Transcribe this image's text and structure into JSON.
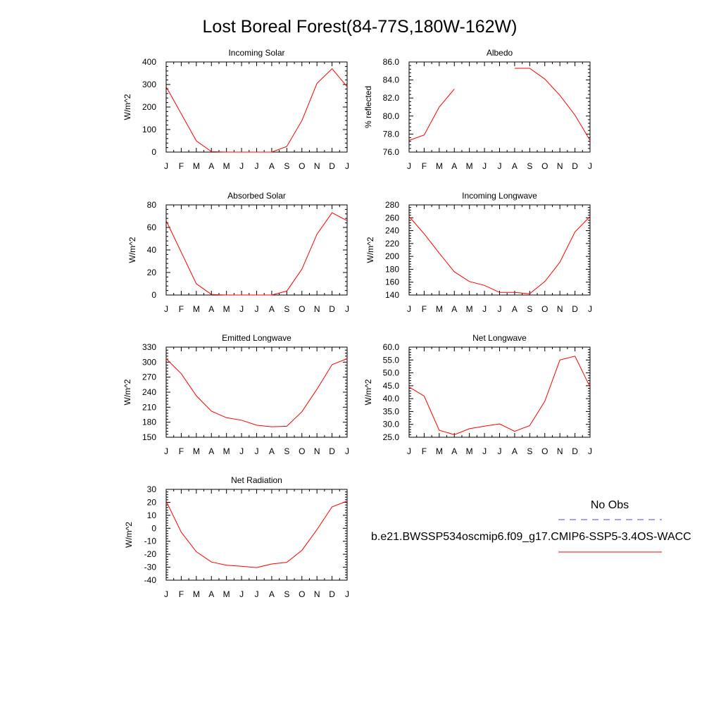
{
  "page_title": "Lost Boreal Forest(84-77S,180W-162W)",
  "month_labels": [
    "J",
    "F",
    "M",
    "A",
    "M",
    "J",
    "J",
    "A",
    "S",
    "O",
    "N",
    "D",
    "J"
  ],
  "colors": {
    "model_line": "#ff0000",
    "obs_line": "#4444ff",
    "axis": "#000000"
  },
  "legend": {
    "obs_label": "No Obs",
    "model_label": "b.e21.BWSSP534oscmip6.f09_g17.CMIP6-SSP5-3.4OS-WACC"
  },
  "chart_data": [
    {
      "type": "line",
      "title": "Incoming Solar",
      "ylabel": "W/m^2",
      "ylim": [
        0,
        400
      ],
      "yticks": [
        "0",
        "100",
        "200",
        "300",
        "400"
      ],
      "values": [
        290,
        170,
        50,
        2,
        0,
        0,
        0,
        0,
        25,
        140,
        305,
        370,
        290
      ]
    },
    {
      "type": "line",
      "title": "Albedo",
      "ylabel": "% reflected",
      "ylim": [
        76,
        86
      ],
      "yticks": [
        "76.0",
        "78.0",
        "80.0",
        "82.0",
        "84.0",
        "86.0"
      ],
      "values": [
        77.3,
        77.9,
        81.0,
        83.0,
        null,
        null,
        null,
        85.3,
        85.3,
        84.1,
        82.3,
        80.1,
        77.3
      ]
    },
    {
      "type": "line",
      "title": "Absorbed Solar",
      "ylabel": "W/m^2",
      "ylim": [
        0,
        80
      ],
      "yticks": [
        "0",
        "20",
        "40",
        "60",
        "80"
      ],
      "values": [
        66,
        38,
        10,
        0.5,
        0,
        0,
        0,
        0,
        3.5,
        23,
        54,
        73,
        66
      ]
    },
    {
      "type": "line",
      "title": "Incoming Longwave",
      "ylabel": "W/m^2",
      "ylim": [
        140,
        280
      ],
      "yticks": [
        "140",
        "160",
        "180",
        "200",
        "220",
        "240",
        "260",
        "280"
      ],
      "values": [
        262,
        235,
        205,
        176,
        161,
        155,
        144,
        144,
        142,
        161,
        191,
        238,
        262
      ]
    },
    {
      "type": "line",
      "title": "Emitted Longwave",
      "ylabel": "W/m^2",
      "ylim": [
        150,
        330
      ],
      "yticks": [
        "150",
        "180",
        "210",
        "240",
        "270",
        "300",
        "330"
      ],
      "values": [
        307,
        277,
        233,
        202,
        189,
        184,
        174,
        171,
        172,
        201,
        246,
        295,
        307
      ]
    },
    {
      "type": "line",
      "title": "Net Longwave",
      "ylabel": "W/m^2",
      "ylim": [
        25,
        60
      ],
      "yticks": [
        "25.0",
        "30.0",
        "35.0",
        "40.0",
        "45.0",
        "50.0",
        "55.0",
        "60.0"
      ],
      "values": [
        44.5,
        41,
        27.7,
        26,
        28.3,
        29.3,
        30.2,
        27.3,
        29.5,
        39,
        55,
        56.5,
        44.5
      ]
    },
    {
      "type": "line",
      "title": "Net Radiation",
      "ylabel": "W/m^2",
      "ylim": [
        -40,
        30
      ],
      "yticks": [
        "-40",
        "-30",
        "-20",
        "-10",
        "0",
        "10",
        "20",
        "30"
      ],
      "values": [
        21,
        -3,
        -18,
        -26,
        -28.5,
        -29.3,
        -30.3,
        -27.5,
        -26.2,
        -17,
        -1,
        16.5,
        21
      ]
    }
  ]
}
